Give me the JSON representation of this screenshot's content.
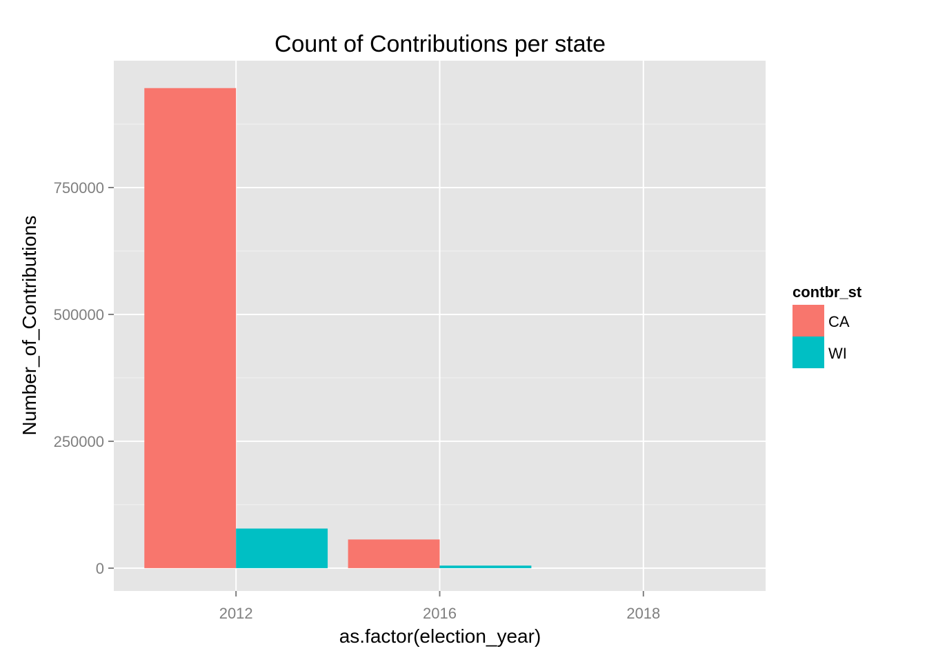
{
  "chart_data": {
    "type": "bar",
    "title": "Count of Contributions per state",
    "xlabel": "as.factor(election_year)",
    "ylabel": "Number_of_Contributions",
    "categories": [
      "2012",
      "2016",
      "2018"
    ],
    "series": [
      {
        "name": "CA",
        "color": "#F8766D",
        "values": [
          946000,
          56500,
          0
        ]
      },
      {
        "name": "WI",
        "color": "#00BFC4",
        "values": [
          78000,
          5000,
          0
        ]
      }
    ],
    "y_ticks": [
      0,
      250000,
      500000,
      750000
    ],
    "y_tick_labels": [
      "0",
      "250000",
      "500000",
      "750000"
    ],
    "ylim": [
      -45000,
      1000000
    ],
    "grid": true,
    "panel_background": "#E5E5E5",
    "legend": {
      "title": "contbr_st",
      "position": "right",
      "items": [
        "CA",
        "WI"
      ]
    }
  }
}
